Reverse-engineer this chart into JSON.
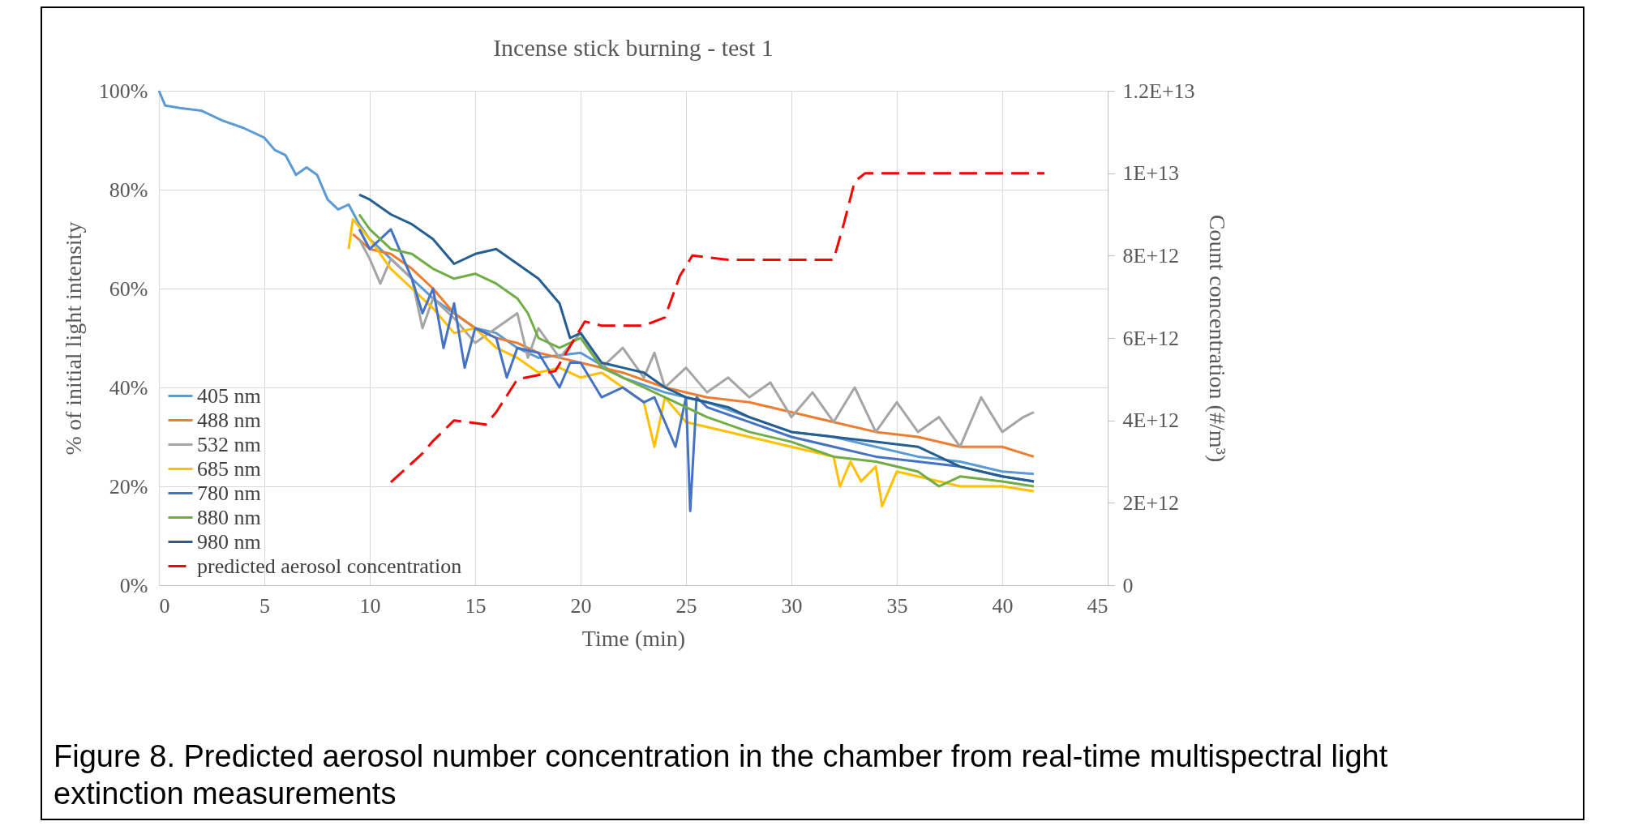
{
  "chart_data": {
    "type": "line",
    "title": "Incense stick burning - test 1",
    "xlabel": "Time (min)",
    "ylabel": "% of initial light intensity",
    "y2label": "Count concentration (#/m³)",
    "xlim": [
      0,
      45
    ],
    "xticks": [
      0,
      5,
      10,
      15,
      20,
      25,
      30,
      35,
      40,
      45
    ],
    "ylim": [
      0,
      100
    ],
    "yticks": [
      {
        "value": 0,
        "label": "0%"
      },
      {
        "value": 20,
        "label": "20%"
      },
      {
        "value": 40,
        "label": "40%"
      },
      {
        "value": 60,
        "label": "60%"
      },
      {
        "value": 80,
        "label": "80%"
      },
      {
        "value": 100,
        "label": "100%"
      }
    ],
    "y2lim": [
      0,
      12000000000000
    ],
    "y2ticks": [
      0,
      {
        "value": 2000000000000,
        "label": "2E+12"
      },
      {
        "value": 4000000000000,
        "label": "4E+12"
      },
      {
        "value": 6000000000000,
        "label": "6E+12"
      },
      {
        "value": 8000000000000,
        "label": "8E+12"
      },
      {
        "value": 10000000000000,
        "label": "1E+13"
      },
      {
        "value": 12000000000000,
        "label": "1.2E+13"
      }
    ],
    "grid": true,
    "legend": "bottom left",
    "marker": "none",
    "series": [
      {
        "name": "405 nm",
        "color": "#5b9bd5",
        "x": [
          0,
          0.3,
          1,
          2,
          3,
          4,
          5,
          5.5,
          6,
          6.5,
          7,
          7.5,
          8,
          8.5,
          9,
          9.5,
          10,
          11,
          12,
          13,
          14,
          15,
          16,
          17,
          18,
          20,
          22,
          24,
          26,
          28,
          30,
          32,
          34,
          36,
          38,
          40,
          41.5
        ],
        "values": [
          100,
          97,
          96.5,
          96,
          94,
          92.5,
          90.5,
          88,
          87,
          83,
          84.5,
          83,
          78,
          76,
          77,
          73,
          70,
          66,
          62,
          58,
          55,
          52,
          51,
          48,
          46,
          47,
          42,
          39,
          37,
          34,
          31,
          30,
          28,
          26,
          25,
          23,
          22.5
        ]
      },
      {
        "name": "488 nm",
        "color": "#ed7d31",
        "x": [
          9.2,
          10,
          11,
          12,
          13,
          14,
          15,
          16,
          17,
          18,
          19,
          20,
          22,
          24,
          26,
          28,
          30,
          32,
          34,
          36,
          38,
          40,
          41.5
        ],
        "values": [
          71,
          68,
          67,
          64,
          60,
          55,
          52,
          50,
          49,
          47,
          46,
          45,
          43,
          40,
          38,
          37,
          35,
          33,
          31,
          30,
          28,
          28,
          26
        ]
      },
      {
        "name": "532 nm",
        "color": "#a5a5a5",
        "x": [
          9.5,
          10,
          10.5,
          11,
          12,
          12.5,
          13,
          14,
          15,
          16,
          17,
          17.5,
          18,
          19,
          20,
          21,
          22,
          23,
          23.5,
          24,
          25,
          26,
          27,
          28,
          29,
          30,
          31,
          32,
          33,
          34,
          35,
          36,
          37,
          38,
          38.5,
          39,
          40,
          41,
          41.5
        ],
        "values": [
          70,
          66,
          61,
          66,
          62,
          52,
          58,
          54,
          49,
          52,
          55,
          46,
          52,
          46,
          51,
          44,
          48,
          42,
          47,
          40,
          44,
          39,
          42,
          38,
          41,
          34,
          39,
          33,
          40,
          31,
          37,
          31,
          34,
          28,
          33,
          38,
          31,
          34,
          35
        ]
      },
      {
        "name": "685 nm",
        "color": "#ffc000",
        "x": [
          9,
          9.2,
          10,
          11,
          12,
          13,
          14,
          15,
          16,
          17,
          18,
          19,
          20,
          21,
          22,
          23,
          23.5,
          24,
          25,
          26,
          28,
          30,
          32,
          32.3,
          32.8,
          33.3,
          34,
          34.3,
          35,
          36,
          38,
          40,
          41.5
        ],
        "values": [
          68,
          74,
          70,
          64,
          60,
          56,
          51,
          52,
          48,
          46,
          43,
          44,
          42,
          43,
          40,
          37,
          28,
          38,
          33,
          32,
          30,
          28,
          26,
          20,
          25,
          21,
          24,
          16,
          23,
          22,
          20,
          20,
          19
        ]
      },
      {
        "name": "780 nm",
        "color": "#4472c4",
        "x": [
          9.5,
          10,
          11,
          12,
          12.5,
          13,
          13.5,
          14,
          14.5,
          15,
          16,
          16.5,
          17,
          18,
          19,
          19.5,
          20,
          21,
          22,
          23,
          23.5,
          24,
          24.5,
          25,
          25.2,
          25.5,
          26,
          28,
          30,
          32,
          34,
          36,
          38,
          40,
          41.5
        ],
        "values": [
          72,
          68,
          72,
          62,
          55,
          60,
          48,
          57,
          44,
          52,
          50,
          42,
          48,
          47,
          40,
          45,
          45,
          38,
          40,
          37,
          38,
          33,
          28,
          38,
          15,
          38,
          36,
          33,
          30,
          28,
          26,
          25,
          24,
          22,
          21
        ]
      },
      {
        "name": "880 nm",
        "color": "#70ad47",
        "x": [
          9.5,
          10,
          11,
          12,
          13,
          14,
          15,
          16,
          17,
          17.5,
          18,
          19,
          20,
          21,
          22,
          23,
          24,
          25,
          26,
          28,
          30,
          32,
          34,
          36,
          37,
          38,
          40,
          41.5
        ],
        "values": [
          75,
          72,
          68,
          67,
          64,
          62,
          63,
          61,
          58,
          55,
          50,
          48,
          50,
          44,
          42,
          40,
          38,
          36,
          34,
          31,
          29,
          26,
          25,
          23,
          20,
          22,
          21,
          20
        ]
      },
      {
        "name": "980 nm",
        "color": "#255e91",
        "x": [
          9.5,
          10,
          11,
          12,
          13,
          14,
          15,
          16,
          17,
          18,
          19,
          19.5,
          20,
          21,
          22,
          23,
          24,
          25,
          26,
          27,
          28,
          30,
          32,
          34,
          36,
          37,
          38,
          40,
          41.5
        ],
        "values": [
          79,
          78,
          75,
          73,
          70,
          65,
          67,
          68,
          65,
          62,
          57,
          50,
          51,
          45,
          44,
          43,
          40,
          38,
          37,
          36,
          34,
          31,
          30,
          29,
          28,
          26,
          24,
          22,
          21
        ]
      },
      {
        "name": "predicted aerosol concentration",
        "color": "#ff0000",
        "axis": "y2",
        "line_style": "dashed",
        "x": [
          11,
          12.5,
          13,
          14,
          15.5,
          16,
          17,
          18,
          18.8,
          19.5,
          20.2,
          21,
          23,
          24,
          24.7,
          25.3,
          27,
          32,
          32.5,
          33,
          33.5,
          42
        ],
        "values": [
          2500000000000,
          3200000000000,
          3500000000000,
          4000000000000,
          3900000000000,
          4200000000000,
          5000000000000,
          5100000000000,
          5200000000000,
          5800000000000,
          6400000000000,
          6300000000000,
          6300000000000,
          6500000000000,
          7500000000000,
          8000000000000,
          7900000000000,
          7900000000000,
          8800000000000,
          9800000000000,
          10000000000000,
          10000000000000
        ]
      }
    ],
    "annotations": [
      "Figure 8. Predicted aerosol number concentration in the chamber from real-time multispectral light extinction measurements"
    ]
  }
}
